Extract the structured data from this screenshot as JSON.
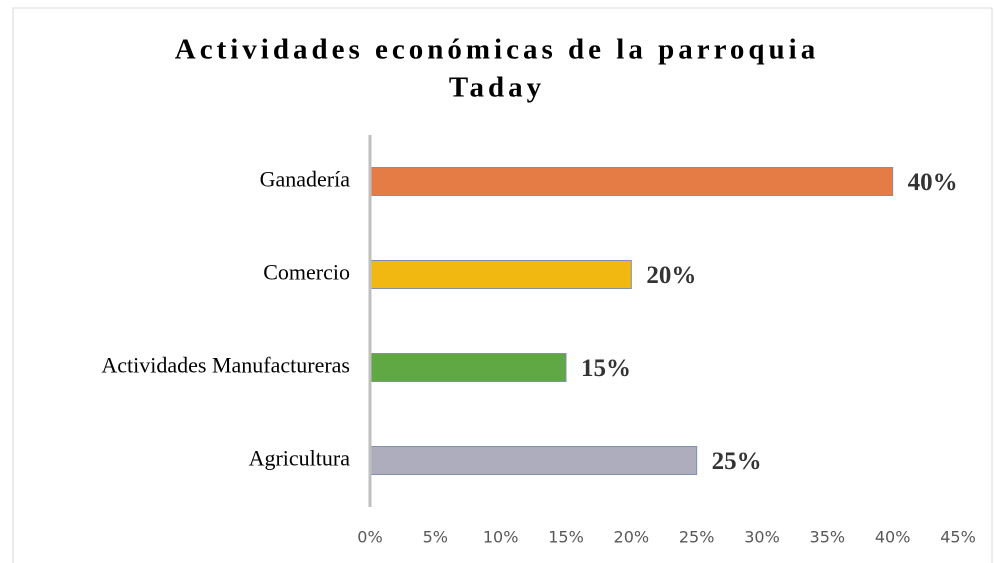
{
  "chart_data": {
    "type": "bar",
    "orientation": "horizontal",
    "title": [
      "Actividades económicas de la parroquia",
      "Taday"
    ],
    "categories": [
      "Ganadería",
      "Comercio",
      "Actividades Manufactureras",
      "Agricultura"
    ],
    "values": [
      40,
      20,
      15,
      25
    ],
    "value_labels": [
      "40%",
      "20%",
      "15%",
      "25%"
    ],
    "colors": [
      "#e57c45",
      "#f0b810",
      "#5fa843",
      "#adadbd"
    ],
    "xlim": [
      0,
      45
    ],
    "xticks": [
      {
        "value": 0,
        "label": "0%"
      },
      {
        "value": 5,
        "label": "5%"
      },
      {
        "value": 10,
        "label": "10%"
      },
      {
        "value": 15,
        "label": "15%"
      },
      {
        "value": 20,
        "label": "20%"
      },
      {
        "value": 25,
        "label": "25%"
      },
      {
        "value": 30,
        "label": "30%"
      },
      {
        "value": 35,
        "label": "35%"
      },
      {
        "value": 40,
        "label": "40%"
      },
      {
        "value": 45,
        "label": "45%"
      }
    ],
    "grid": false
  }
}
